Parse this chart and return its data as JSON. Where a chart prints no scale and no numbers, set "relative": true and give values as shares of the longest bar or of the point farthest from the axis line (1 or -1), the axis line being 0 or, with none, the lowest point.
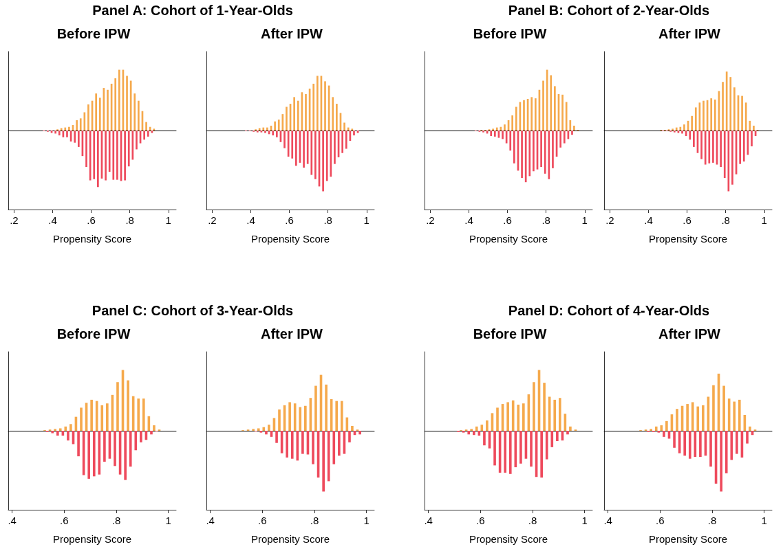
{
  "chart_data": [
    {
      "type": "bar",
      "relative": true,
      "title": "Panel A: Cohort of 1-Year-Olds",
      "subtitle": "Before IPW",
      "xlabel": "Propensity Score",
      "xlim": [
        0.17,
        1.04
      ],
      "xticks": [
        {
          "value": 0.2,
          "label": ".2"
        },
        {
          "value": 0.4,
          "label": ".4"
        },
        {
          "value": 0.6,
          "label": ".6"
        },
        {
          "value": 0.8,
          "label": ".8"
        },
        {
          "value": 1,
          "label": "1"
        }
      ],
      "x": [
        0.35,
        0.37,
        0.39,
        0.41,
        0.43,
        0.45,
        0.47,
        0.49,
        0.51,
        0.53,
        0.55,
        0.57,
        0.59,
        0.61,
        0.63,
        0.65,
        0.67,
        0.69,
        0.71,
        0.73,
        0.75,
        0.77,
        0.79,
        0.81,
        0.83,
        0.85,
        0.87,
        0.89,
        0.91,
        0.93,
        0.95
      ],
      "series": [
        {
          "color": "#f5a94c",
          "values": [
            0,
            0,
            0,
            0,
            0.02,
            0.04,
            0.05,
            0.06,
            0.09,
            0.17,
            0.2,
            0.3,
            0.43,
            0.49,
            0.61,
            0.54,
            0.7,
            0.67,
            0.77,
            0.86,
            1,
            1,
            0.9,
            0.82,
            0.61,
            0.49,
            0.32,
            0.14,
            0.06,
            0.03,
            0
          ]
        },
        {
          "color": "#ee4a5c",
          "values": [
            -0.01,
            -0.02,
            -0.04,
            -0.05,
            -0.08,
            -0.11,
            -0.11,
            -0.18,
            -0.2,
            -0.27,
            -0.42,
            -0.6,
            -0.82,
            -0.8,
            -0.93,
            -0.79,
            -0.82,
            -0.68,
            -0.81,
            -0.81,
            -0.83,
            -0.82,
            -0.59,
            -0.48,
            -0.31,
            -0.21,
            -0.15,
            -0.1,
            -0.04,
            0,
            0
          ]
        }
      ]
    },
    {
      "type": "bar",
      "relative": true,
      "subtitle": "After IPW",
      "xlabel": "Propensity Score",
      "xlim": [
        0.17,
        1.04
      ],
      "xticks": [
        {
          "value": 0.2,
          "label": ".2"
        },
        {
          "value": 0.4,
          "label": ".4"
        },
        {
          "value": 0.6,
          "label": ".6"
        },
        {
          "value": 0.8,
          "label": ".8"
        },
        {
          "value": 1,
          "label": "1"
        }
      ],
      "x": [
        0.35,
        0.37,
        0.39,
        0.41,
        0.43,
        0.45,
        0.47,
        0.49,
        0.51,
        0.53,
        0.55,
        0.57,
        0.59,
        0.61,
        0.63,
        0.65,
        0.67,
        0.69,
        0.71,
        0.73,
        0.75,
        0.77,
        0.79,
        0.81,
        0.83,
        0.85,
        0.87,
        0.89,
        0.91,
        0.93,
        0.95
      ],
      "series": [
        {
          "color": "#f5a94c",
          "values": [
            0,
            0,
            0,
            0,
            0.02,
            0.04,
            0.05,
            0.05,
            0.08,
            0.15,
            0.18,
            0.27,
            0.39,
            0.44,
            0.55,
            0.49,
            0.63,
            0.6,
            0.69,
            0.77,
            0.9,
            0.9,
            0.81,
            0.74,
            0.55,
            0.44,
            0.29,
            0.13,
            0.05,
            0.03,
            0
          ]
        },
        {
          "color": "#ee4a5c",
          "values": [
            0,
            -0.01,
            -0.01,
            -0.02,
            -0.03,
            -0.03,
            -0.04,
            -0.06,
            -0.08,
            -0.11,
            -0.19,
            -0.29,
            -0.43,
            -0.46,
            -0.58,
            -0.53,
            -0.61,
            -0.55,
            -0.73,
            -0.8,
            -0.92,
            -1,
            -0.83,
            -0.76,
            -0.55,
            -0.44,
            -0.37,
            -0.3,
            -0.17,
            -0.08,
            -0.04
          ]
        }
      ]
    },
    {
      "type": "bar",
      "relative": true,
      "title": "Panel B: Cohort of 2-Year-Olds",
      "subtitle": "Before IPW",
      "xlabel": "Propensity Score",
      "xlim": [
        0.17,
        1.04
      ],
      "xticks": [
        {
          "value": 0.2,
          "label": ".2"
        },
        {
          "value": 0.4,
          "label": ".4"
        },
        {
          "value": 0.6,
          "label": ".6"
        },
        {
          "value": 0.8,
          "label": ".8"
        },
        {
          "value": 1,
          "label": "1"
        }
      ],
      "x": [
        0.43,
        0.45,
        0.47,
        0.49,
        0.51,
        0.53,
        0.55,
        0.57,
        0.59,
        0.61,
        0.63,
        0.65,
        0.67,
        0.69,
        0.71,
        0.73,
        0.75,
        0.77,
        0.79,
        0.81,
        0.83,
        0.85,
        0.87,
        0.89,
        0.91,
        0.93,
        0.95,
        0.97
      ],
      "series": [
        {
          "color": "#f5a94c",
          "values": [
            0,
            0,
            0.01,
            0.01,
            0.02,
            0.03,
            0.05,
            0.06,
            0.1,
            0.17,
            0.25,
            0.39,
            0.47,
            0.5,
            0.52,
            0.55,
            0.53,
            0.67,
            0.82,
            1,
            0.91,
            0.73,
            0.6,
            0.59,
            0.47,
            0.17,
            0.08,
            0.01
          ]
        },
        {
          "color": "#ee4a5c",
          "values": [
            -0.01,
            -0.02,
            -0.03,
            -0.05,
            -0.09,
            -0.1,
            -0.12,
            -0.14,
            -0.21,
            -0.33,
            -0.54,
            -0.66,
            -0.78,
            -0.85,
            -0.75,
            -0.67,
            -0.64,
            -0.6,
            -0.71,
            -0.8,
            -0.62,
            -0.43,
            -0.28,
            -0.21,
            -0.14,
            -0.07,
            0,
            0
          ]
        }
      ]
    },
    {
      "type": "bar",
      "relative": true,
      "subtitle": "After IPW",
      "xlabel": "Propensity Score",
      "xlim": [
        0.17,
        1.04
      ],
      "xticks": [
        {
          "value": 0.2,
          "label": ".2"
        },
        {
          "value": 0.4,
          "label": ".4"
        },
        {
          "value": 0.6,
          "label": ".6"
        },
        {
          "value": 0.8,
          "label": ".8"
        },
        {
          "value": 1,
          "label": "1"
        }
      ],
      "x": [
        0.43,
        0.45,
        0.47,
        0.49,
        0.51,
        0.53,
        0.55,
        0.57,
        0.59,
        0.61,
        0.63,
        0.65,
        0.67,
        0.69,
        0.71,
        0.73,
        0.75,
        0.77,
        0.79,
        0.81,
        0.83,
        0.85,
        0.87,
        0.89,
        0.91,
        0.93,
        0.95,
        0.97
      ],
      "series": [
        {
          "color": "#f5a94c",
          "values": [
            0,
            0,
            0.01,
            0.01,
            0.02,
            0.03,
            0.05,
            0.06,
            0.1,
            0.16,
            0.24,
            0.38,
            0.46,
            0.49,
            0.5,
            0.53,
            0.51,
            0.65,
            0.8,
            0.97,
            0.88,
            0.71,
            0.58,
            0.57,
            0.46,
            0.16,
            0.08,
            0.01
          ]
        },
        {
          "color": "#ee4a5c",
          "values": [
            0,
            0,
            -0.01,
            -0.01,
            -0.02,
            -0.03,
            -0.04,
            -0.05,
            -0.09,
            -0.15,
            -0.27,
            -0.37,
            -0.47,
            -0.56,
            -0.54,
            -0.53,
            -0.56,
            -0.6,
            -0.78,
            -1,
            -0.89,
            -0.72,
            -0.55,
            -0.51,
            -0.4,
            -0.26,
            -0.09,
            0
          ]
        }
      ]
    },
    {
      "type": "bar",
      "relative": true,
      "title": "Panel C: Cohort of 3-Year-Olds",
      "subtitle": "Before IPW",
      "xlabel": "Propensity Score",
      "xlim": [
        0.385,
        1.03
      ],
      "xticks": [
        {
          "value": 0.4,
          "label": ".4"
        },
        {
          "value": 0.6,
          "label": ".6"
        },
        {
          "value": 0.8,
          "label": ".8"
        },
        {
          "value": 1,
          "label": "1"
        }
      ],
      "x": [
        0.51,
        0.53,
        0.55,
        0.57,
        0.59,
        0.61,
        0.63,
        0.65,
        0.67,
        0.69,
        0.71,
        0.73,
        0.75,
        0.77,
        0.79,
        0.81,
        0.83,
        0.85,
        0.87,
        0.89,
        0.91,
        0.93,
        0.95,
        0.97
      ],
      "series": [
        {
          "color": "#f5a94c",
          "values": [
            0,
            0.01,
            0.02,
            0.03,
            0.04,
            0.07,
            0.11,
            0.23,
            0.38,
            0.46,
            0.51,
            0.49,
            0.42,
            0.45,
            0.59,
            0.8,
            1,
            0.83,
            0.57,
            0.53,
            0.53,
            0.24,
            0.09,
            0.02
          ]
        },
        {
          "color": "#ee4a5c",
          "values": [
            0,
            -0.02,
            -0.04,
            -0.08,
            -0.08,
            -0.16,
            -0.22,
            -0.42,
            -0.73,
            -0.79,
            -0.75,
            -0.72,
            -0.51,
            -0.46,
            -0.58,
            -0.72,
            -0.81,
            -0.59,
            -0.32,
            -0.19,
            -0.15,
            -0.06,
            -0.01,
            0
          ]
        }
      ]
    },
    {
      "type": "bar",
      "relative": true,
      "subtitle": "After IPW",
      "xlabel": "Propensity Score",
      "xlim": [
        0.385,
        1.03
      ],
      "xticks": [
        {
          "value": 0.4,
          "label": ".4"
        },
        {
          "value": 0.6,
          "label": ".6"
        },
        {
          "value": 0.8,
          "label": ".8"
        },
        {
          "value": 1,
          "label": "1"
        }
      ],
      "x": [
        0.51,
        0.53,
        0.55,
        0.57,
        0.59,
        0.61,
        0.63,
        0.65,
        0.67,
        0.69,
        0.71,
        0.73,
        0.75,
        0.77,
        0.79,
        0.81,
        0.83,
        0.85,
        0.87,
        0.89,
        0.91,
        0.93,
        0.95,
        0.97
      ],
      "series": [
        {
          "color": "#f5a94c",
          "values": [
            0,
            0.01,
            0.02,
            0.03,
            0.04,
            0.06,
            0.1,
            0.21,
            0.35,
            0.42,
            0.47,
            0.45,
            0.39,
            0.41,
            0.54,
            0.74,
            0.92,
            0.76,
            0.52,
            0.49,
            0.49,
            0.22,
            0.08,
            0.02
          ]
        },
        {
          "color": "#ee4a5c",
          "values": [
            0,
            0,
            0,
            -0.01,
            -0.03,
            -0.06,
            -0.1,
            -0.2,
            -0.37,
            -0.44,
            -0.46,
            -0.49,
            -0.38,
            -0.39,
            -0.55,
            -0.77,
            -1,
            -0.83,
            -0.55,
            -0.41,
            -0.38,
            -0.19,
            -0.07,
            -0.06
          ]
        }
      ]
    },
    {
      "type": "bar",
      "relative": true,
      "title": "Panel D: Cohort of 4-Year-Olds",
      "subtitle": "Before IPW",
      "xlabel": "Propensity Score",
      "xlim": [
        0.385,
        1.03
      ],
      "xticks": [
        {
          "value": 0.4,
          "label": ".4"
        },
        {
          "value": 0.6,
          "label": ".6"
        },
        {
          "value": 0.8,
          "label": ".8"
        },
        {
          "value": 1,
          "label": "1"
        }
      ],
      "x": [
        0.51,
        0.53,
        0.55,
        0.57,
        0.59,
        0.61,
        0.63,
        0.65,
        0.67,
        0.69,
        0.71,
        0.73,
        0.75,
        0.77,
        0.79,
        0.81,
        0.83,
        0.85,
        0.87,
        0.89,
        0.91,
        0.93,
        0.95,
        0.97
      ],
      "series": [
        {
          "color": "#f5a94c",
          "values": [
            0,
            0.01,
            0.02,
            0.03,
            0.07,
            0.1,
            0.17,
            0.29,
            0.38,
            0.44,
            0.47,
            0.5,
            0.43,
            0.45,
            0.6,
            0.8,
            1,
            0.79,
            0.56,
            0.51,
            0.54,
            0.28,
            0.07,
            0.02
          ]
        },
        {
          "color": "#ee4a5c",
          "values": [
            -0.02,
            -0.03,
            -0.06,
            -0.07,
            -0.08,
            -0.24,
            -0.29,
            -0.57,
            -0.69,
            -0.69,
            -0.71,
            -0.6,
            -0.54,
            -0.46,
            -0.59,
            -0.76,
            -0.77,
            -0.47,
            -0.27,
            -0.17,
            -0.16,
            -0.06,
            0,
            0
          ]
        }
      ]
    },
    {
      "type": "bar",
      "relative": true,
      "subtitle": "After IPW",
      "xlabel": "Propensity Score",
      "xlim": [
        0.385,
        1.03
      ],
      "xticks": [
        {
          "value": 0.4,
          "label": ".4"
        },
        {
          "value": 0.6,
          "label": ".6"
        },
        {
          "value": 0.8,
          "label": ".8"
        },
        {
          "value": 1,
          "label": "1"
        }
      ],
      "x": [
        0.51,
        0.53,
        0.55,
        0.57,
        0.59,
        0.61,
        0.63,
        0.65,
        0.67,
        0.69,
        0.71,
        0.73,
        0.75,
        0.77,
        0.79,
        0.81,
        0.83,
        0.85,
        0.87,
        0.89,
        0.91,
        0.93,
        0.95,
        0.97
      ],
      "series": [
        {
          "color": "#f5a94c",
          "values": [
            0,
            0.01,
            0.02,
            0.03,
            0.07,
            0.09,
            0.16,
            0.27,
            0.36,
            0.41,
            0.44,
            0.47,
            0.4,
            0.42,
            0.56,
            0.75,
            0.94,
            0.74,
            0.53,
            0.48,
            0.51,
            0.26,
            0.07,
            0.02
          ]
        },
        {
          "color": "#ee4a5c",
          "values": [
            0,
            0,
            -0.02,
            -0.02,
            -0.03,
            -0.1,
            -0.13,
            -0.28,
            -0.37,
            -0.41,
            -0.46,
            -0.43,
            -0.43,
            -0.41,
            -0.59,
            -0.87,
            -1,
            -0.7,
            -0.48,
            -0.38,
            -0.44,
            -0.21,
            -0.07,
            0
          ]
        }
      ]
    }
  ]
}
